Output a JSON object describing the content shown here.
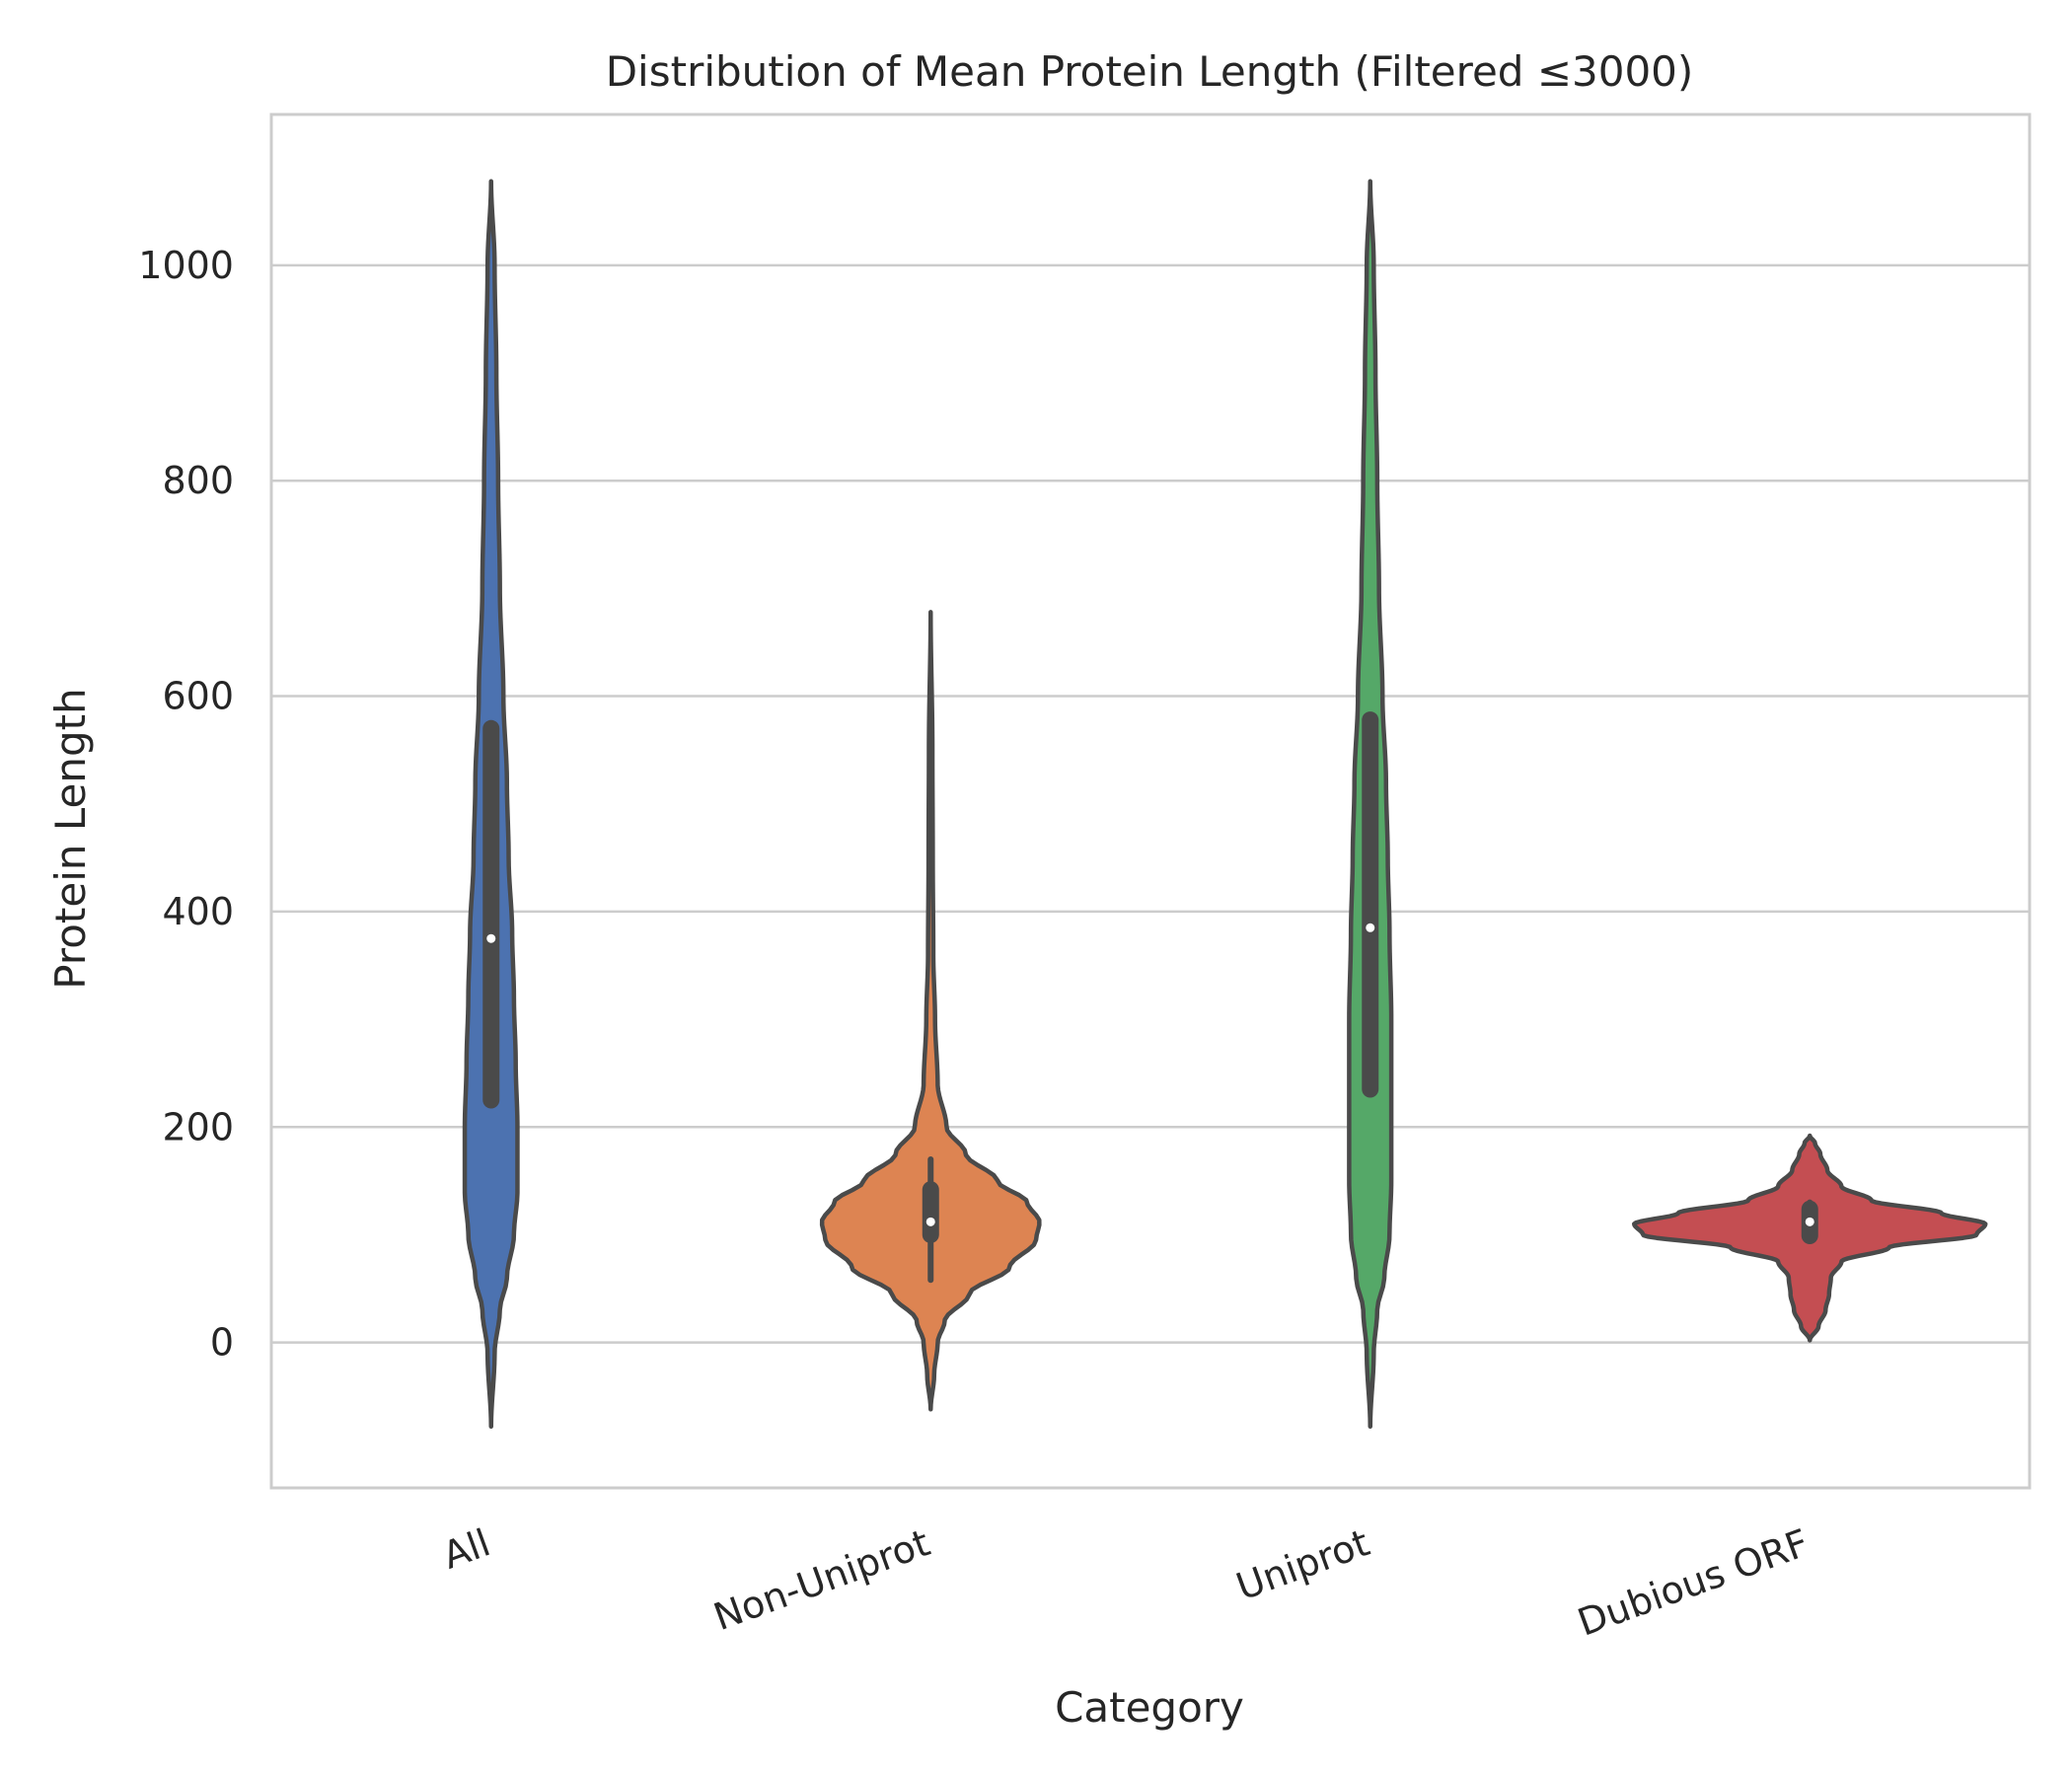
{
  "chart_data": {
    "type": "violin",
    "title": "Distribution of Mean Protein Length (Filtered ≤3000)",
    "xlabel": "Category",
    "ylabel": "Protein Length",
    "ylim": [
      -135,
      1140
    ],
    "yticks": [
      0,
      200,
      400,
      600,
      800,
      1000
    ],
    "grid": "horizontal",
    "categories": [
      "All",
      "Non-Uniprot",
      "Uniprot",
      "Dubious ORF"
    ],
    "colors": {
      "All": "#4c72b0",
      "Non-Uniprot": "#dd8452",
      "Uniprot": "#55a868",
      "Dubious ORF": "#c44e52",
      "outline": "#4a4a4a",
      "grid": "#cccccc",
      "frame": "#cccccc"
    },
    "violins": [
      {
        "category": "All",
        "min": -78,
        "max": 1078,
        "median": 375,
        "q1": 225,
        "q3": 570,
        "whisker_low": 225,
        "whisker_high": 570,
        "profile": [
          [
            -78,
            0
          ],
          [
            -10,
            0.02
          ],
          [
            30,
            0.05
          ],
          [
            60,
            0.09
          ],
          [
            100,
            0.13
          ],
          [
            140,
            0.15
          ],
          [
            200,
            0.15
          ],
          [
            260,
            0.14
          ],
          [
            320,
            0.13
          ],
          [
            380,
            0.12
          ],
          [
            450,
            0.1
          ],
          [
            520,
            0.09
          ],
          [
            600,
            0.07
          ],
          [
            700,
            0.05
          ],
          [
            800,
            0.04
          ],
          [
            900,
            0.03
          ],
          [
            1000,
            0.02
          ],
          [
            1078,
            0
          ]
        ]
      },
      {
        "category": "Non-Uniprot",
        "min": -62,
        "max": 678,
        "median": 112,
        "q1": 100,
        "q3": 142,
        "whisker_low": 58,
        "whisker_high": 170,
        "profile": [
          [
            -62,
            0
          ],
          [
            -30,
            0.02
          ],
          [
            0,
            0.04
          ],
          [
            20,
            0.08
          ],
          [
            45,
            0.22
          ],
          [
            70,
            0.45
          ],
          [
            95,
            0.6
          ],
          [
            112,
            0.62
          ],
          [
            130,
            0.55
          ],
          [
            150,
            0.38
          ],
          [
            175,
            0.2
          ],
          [
            200,
            0.09
          ],
          [
            240,
            0.04
          ],
          [
            300,
            0.025
          ],
          [
            360,
            0.015
          ],
          [
            450,
            0.012
          ],
          [
            550,
            0.01
          ],
          [
            678,
            0
          ]
        ]
      },
      {
        "category": "Uniprot",
        "min": -78,
        "max": 1078,
        "median": 385,
        "q1": 235,
        "q3": 578,
        "whisker_low": 235,
        "whisker_high": 578,
        "profile": [
          [
            -78,
            0
          ],
          [
            -10,
            0.02
          ],
          [
            30,
            0.04
          ],
          [
            60,
            0.08
          ],
          [
            100,
            0.11
          ],
          [
            150,
            0.12
          ],
          [
            220,
            0.12
          ],
          [
            300,
            0.12
          ],
          [
            380,
            0.11
          ],
          [
            450,
            0.1
          ],
          [
            520,
            0.09
          ],
          [
            600,
            0.07
          ],
          [
            700,
            0.05
          ],
          [
            800,
            0.04
          ],
          [
            900,
            0.03
          ],
          [
            1000,
            0.02
          ],
          [
            1078,
            0
          ]
        ]
      },
      {
        "category": "Dubious ORF",
        "min": 2,
        "max": 192,
        "median": 112,
        "q1": 99,
        "q3": 124,
        "whisker_low": 95,
        "whisker_high": 130,
        "profile": [
          [
            2,
            0
          ],
          [
            15,
            0.05
          ],
          [
            30,
            0.09
          ],
          [
            45,
            0.11
          ],
          [
            60,
            0.12
          ],
          [
            75,
            0.18
          ],
          [
            88,
            0.45
          ],
          [
            100,
            0.95
          ],
          [
            110,
            1.0
          ],
          [
            120,
            0.75
          ],
          [
            132,
            0.35
          ],
          [
            145,
            0.18
          ],
          [
            160,
            0.1
          ],
          [
            175,
            0.06
          ],
          [
            185,
            0.03
          ],
          [
            192,
            0
          ]
        ]
      }
    ]
  }
}
